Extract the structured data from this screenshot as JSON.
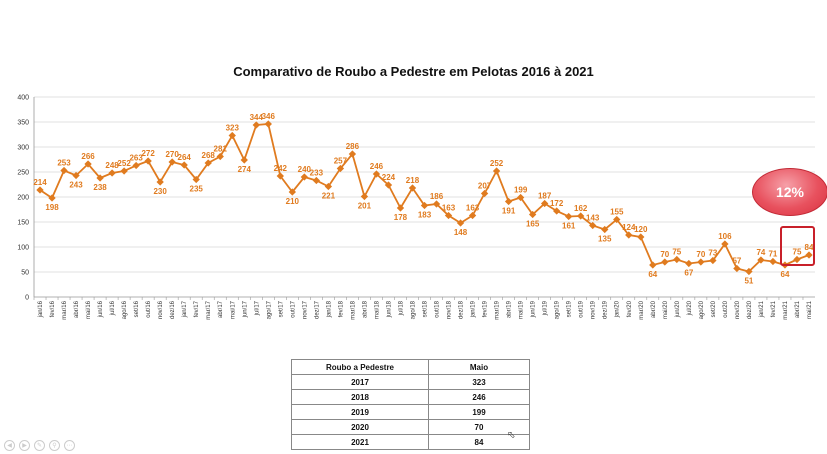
{
  "chart_data": {
    "type": "line",
    "title": "Comparativo de Roubo a Pedestre em Pelotas 2016 à 2021",
    "xlabel": "",
    "ylabel": "",
    "ylim": [
      0,
      400
    ],
    "yticks": [
      0,
      50,
      100,
      150,
      200,
      250,
      300,
      350,
      400
    ],
    "grid": true,
    "series_color": "#e07b1f",
    "categories": [
      "jan/16",
      "fev/16",
      "mar/16",
      "abr/16",
      "mai/16",
      "jun/16",
      "jul/16",
      "ago/16",
      "set/16",
      "out/16",
      "nov/16",
      "dez/16",
      "jan/17",
      "fev/17",
      "mar/17",
      "abr/17",
      "mai/17",
      "jun/17",
      "jul/17",
      "ago/17",
      "set/17",
      "out/17",
      "nov/17",
      "dez/17",
      "jan/18",
      "fev/18",
      "mar/18",
      "abr/18",
      "mai/18",
      "jun/18",
      "jul/18",
      "ago/18",
      "set/18",
      "out/18",
      "nov/18",
      "dez/18",
      "jan/19",
      "fev/19",
      "mar/19",
      "abr/19",
      "mai/19",
      "jun/19",
      "jul/19",
      "ago/19",
      "set/19",
      "out/19",
      "nov/19",
      "dez/19",
      "jan/20",
      "fev/20",
      "mar/20",
      "abr/20",
      "mai/20",
      "jun/20",
      "jul/20",
      "ago/20",
      "set/20",
      "out/20",
      "nov/20",
      "dez/20",
      "jan/21",
      "fev/21",
      "mar/21",
      "abr/21",
      "mai/21"
    ],
    "values": [
      214,
      198,
      253,
      243,
      266,
      238,
      248,
      252,
      263,
      272,
      230,
      270,
      264,
      235,
      268,
      281,
      323,
      274,
      344,
      346,
      242,
      210,
      240,
      233,
      221,
      257,
      286,
      201,
      246,
      224,
      178,
      218,
      183,
      186,
      163,
      148,
      163,
      207,
      252,
      191,
      199,
      165,
      187,
      172,
      161,
      162,
      143,
      135,
      155,
      124,
      120,
      64,
      70,
      75,
      67,
      70,
      73,
      106,
      57,
      51,
      74,
      71,
      64,
      75,
      84
    ]
  },
  "badge": {
    "text": "12%"
  },
  "table": {
    "headers": [
      "Roubo a Pedestre",
      "Maio"
    ],
    "rows": [
      {
        "year": "2017",
        "value": "323"
      },
      {
        "year": "2018",
        "value": "246"
      },
      {
        "year": "2019",
        "value": "199"
      },
      {
        "year": "2020",
        "value": "70"
      },
      {
        "year": "2021",
        "value": "84"
      }
    ]
  },
  "icons": {
    "cursor": "mouse-cursor-icon",
    "toolbar": [
      "prev-icon",
      "next-icon",
      "pen-icon",
      "zoom-icon",
      "more-icon"
    ]
  }
}
